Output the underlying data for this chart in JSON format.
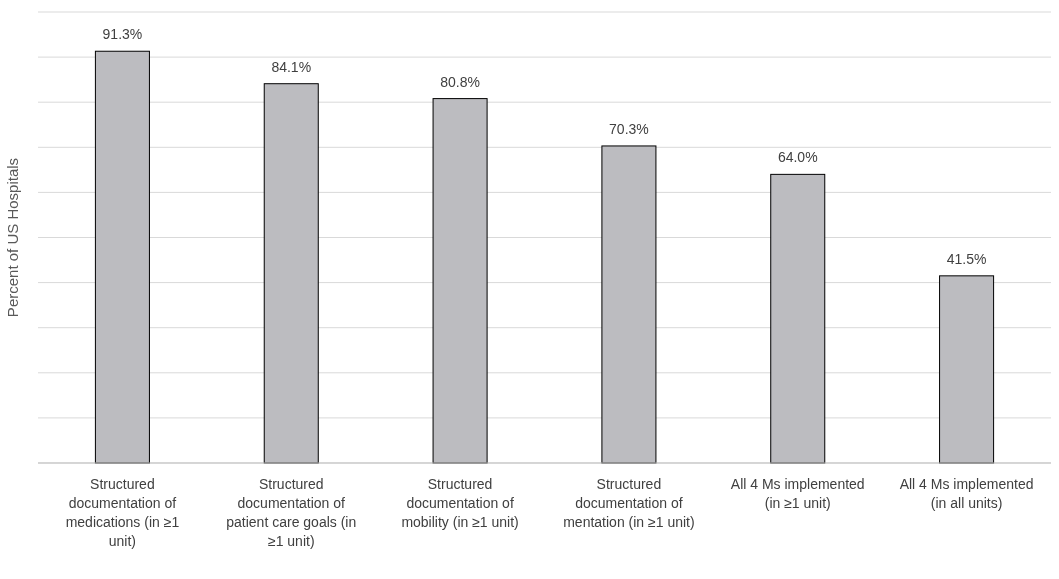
{
  "chart_data": {
    "type": "bar",
    "ylabel": "Percent of US Hospitals",
    "categories": [
      "Structured documentation of medications (in ≥1 unit)",
      "Structured documentation of patient care goals (in ≥1 unit)",
      "Structured documentation of mobility (in ≥1 unit)",
      "Structured documentation of mentation (in ≥1 unit)",
      "All 4 Ms implemented (in ≥1 unit)",
      "All 4 Ms implemented (in all units)"
    ],
    "values": [
      91.3,
      84.1,
      80.8,
      70.3,
      64.0,
      41.5
    ],
    "value_labels": [
      "91.3%",
      "84.1%",
      "80.8%",
      "70.3%",
      "64.0%",
      "41.5%"
    ],
    "color": "#bcbcc0",
    "ylim": [
      0,
      100
    ],
    "yticks": [
      {
        "value": 0,
        "label": null
      },
      {
        "value": 10,
        "label": null
      },
      {
        "value": 20,
        "label": null
      },
      {
        "value": 30,
        "label": null
      },
      {
        "value": 40,
        "label": null
      },
      {
        "value": 50,
        "label": null
      },
      {
        "value": 60,
        "label": null
      },
      {
        "value": 70,
        "label": null
      },
      {
        "value": 80,
        "label": null
      },
      {
        "value": 90,
        "label": null
      },
      {
        "value": 100,
        "label": null
      }
    ],
    "grid": "y",
    "tick_labels": "x"
  }
}
